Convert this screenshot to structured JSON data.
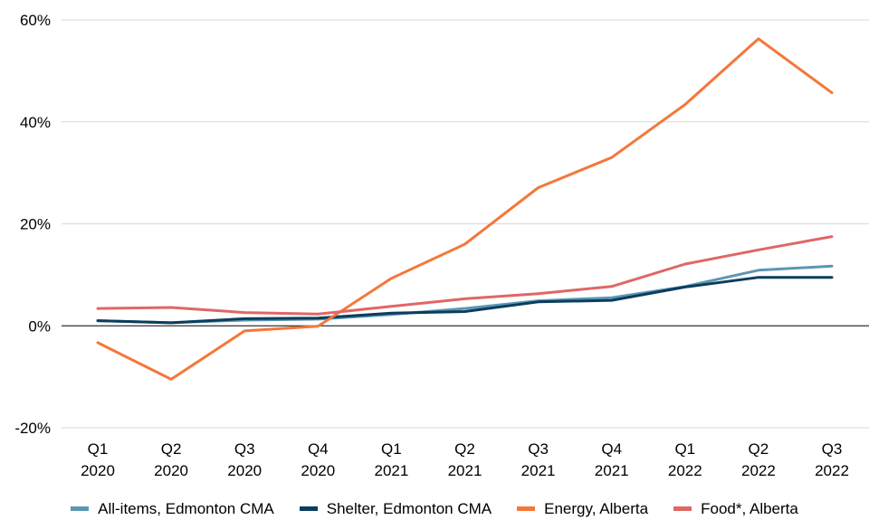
{
  "chart_data": {
    "type": "line",
    "title": "",
    "xlabel": "",
    "ylabel": "",
    "categories": [
      [
        "Q1",
        "2020"
      ],
      [
        "Q2",
        "2020"
      ],
      [
        "Q3",
        "2020"
      ],
      [
        "Q4",
        "2020"
      ],
      [
        "Q1",
        "2021"
      ],
      [
        "Q2",
        "2021"
      ],
      [
        "Q3",
        "2021"
      ],
      [
        "Q4",
        "2021"
      ],
      [
        "Q1",
        "2022"
      ],
      [
        "Q2",
        "2022"
      ],
      [
        "Q3",
        "2022"
      ]
    ],
    "ylim": [
      -20,
      60
    ],
    "yticks": [
      -20,
      0,
      20,
      40,
      60
    ],
    "ytick_labels": [
      "-20%",
      "0%",
      "20%",
      "40%",
      "60%"
    ],
    "grid": true,
    "legend_position": "bottom",
    "series": [
      {
        "name": "All-items, Edmonton CMA",
        "color": "#5b97b3",
        "values": [
          1.0,
          0.6,
          1.1,
          1.3,
          2.2,
          3.4,
          4.9,
          5.5,
          7.7,
          10.9,
          11.7
        ]
      },
      {
        "name": "Shelter, Edmonton CMA",
        "color": "#0b3d5c",
        "values": [
          1.0,
          0.6,
          1.4,
          1.5,
          2.5,
          2.8,
          4.7,
          5.0,
          7.6,
          9.5,
          9.5
        ]
      },
      {
        "name": "Energy, Alberta",
        "color": "#f4773a",
        "values": [
          -3.3,
          -10.5,
          -1.0,
          -0.1,
          9.3,
          16.0,
          27.1,
          33.0,
          43.4,
          56.3,
          45.7
        ]
      },
      {
        "name": "Food*, Alberta",
        "color": "#e06666",
        "values": [
          3.4,
          3.6,
          2.6,
          2.3,
          3.8,
          5.3,
          6.3,
          7.7,
          12.1,
          14.9,
          17.5
        ]
      }
    ]
  }
}
